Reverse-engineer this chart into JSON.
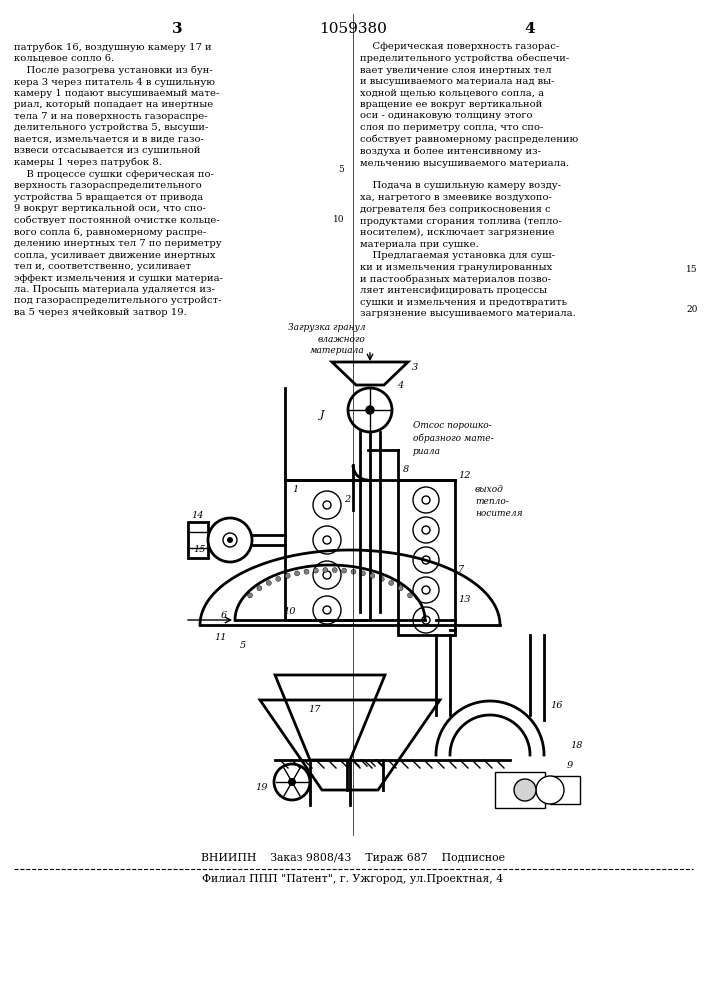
{
  "bg_color": "#ffffff",
  "page_number_left": "3",
  "patent_number": "1059380",
  "page_number_right": "4",
  "left_text": "патрубок 16, воздушную камеру 17 и\nкольцевое сопло 6.\n    После разогрева установки из бун-\nкера 3 через питатель 4 в сушильную\nкамеру 1 подают высушиваемый мате-\nриал, который попадает на инертные\nтела 7 и на поверхность газораспре-\nделительного устройства 5, высуши-\nвается, измельчается и в виде газо-\nвзвеси отсасывается из сушильной\nкамеры 1 через патрубок 8.\n    В процессе сушки сферическая по-\nверхность газораспределительного\nустройства 5 вращается от привода\n9 вокруг вертикальной оси, что спо-\nсобствует постоянной очистке кольце-\nвого сопла 6, равномерному распре-\nделению инертных тел 7 по периметру\nсопла, усиливает движение инертных\nтел и, соответственно, усиливает\nэффект измельчения и сушки материа-\nла. Просыпь материала удаляется из-\nпод газораспределительного устройст-\nва 5 через ячейковый затвор 19.",
  "right_text": "    Сферическая поверхность газорас-\nпределительного устройства обеспечи-\nвает увеличение слоя инертных тел\nи высушиваемого материала над вы-\nходной щелью кольцевого сопла, а\nвращение ее вокруг вертикальной\nоси - одинаковую толщину этого\nслоя по периметру сопла, что спо-\nсобствует равномерному распределению\nвоздуха и более интенсивному из-\nмельчению высушиваемого материала.\n\n    Подача в сушильную камеру возду-\nха, нагретого в змеевике воздухопо-\nдогревателя без соприкосновения с\nпродуктами сгорания топлива (тепло-\nносителем), исключает загрязнение\nматериала при сушке.\n    Предлагаемая установка для суш-\nки и измельчения гранулированных\nи пастообразных материалов позво-\nляет интенсифицировать процессы\nсушки и измельчения и предотвратить\nзагрязнение высушиваемого материала.",
  "footer_line1": "ВНИИПН    Заказ 9808/43    Тираж 687    Подписное",
  "footer_line2": "Филиал ППП \"Патент\", г. Ужгород, ул.Проектная, 4",
  "line_numbers": "15",
  "line_numbers2": "20"
}
